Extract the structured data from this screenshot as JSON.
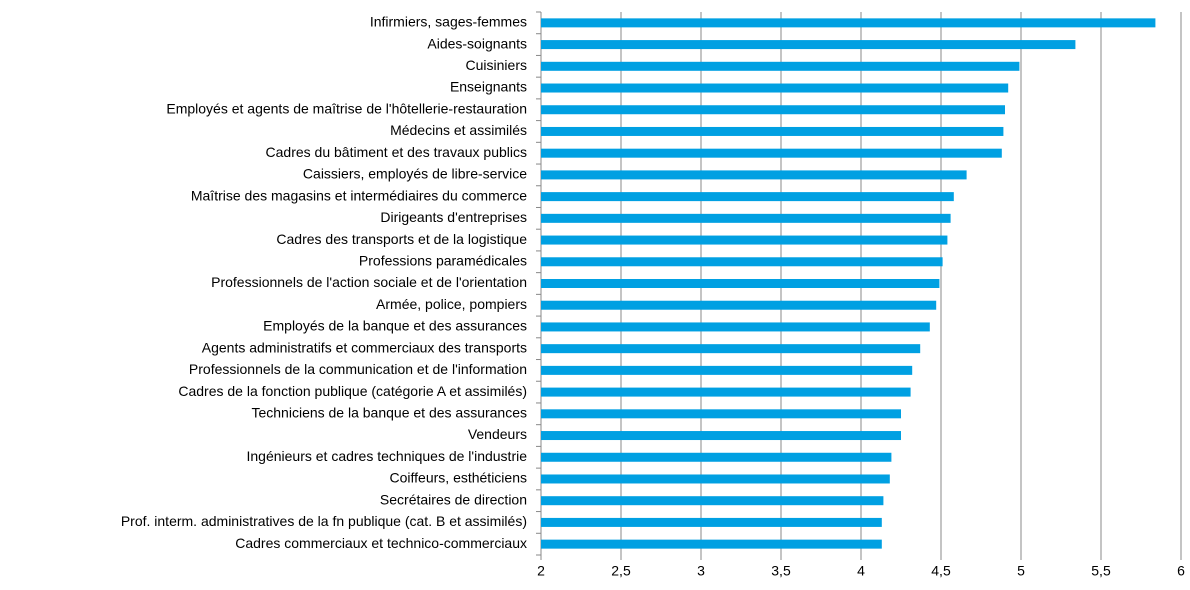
{
  "chart_data": {
    "type": "bar",
    "orientation": "horizontal",
    "categories": [
      "Infirmiers, sages-femmes",
      "Aides-soignants",
      "Cuisiniers",
      "Enseignants",
      "Employés et agents de maîtrise de l'hôtellerie-restauration",
      "Médecins et assimilés",
      "Cadres du bâtiment et des travaux publics",
      "Caissiers, employés de libre-service",
      "Maîtrise des magasins et intermédiaires du commerce",
      "Dirigeants d'entreprises",
      "Cadres des transports et de la logistique",
      "Professions paramédicales",
      "Professionnels de l'action sociale et de l'orientation",
      "Armée, police, pompiers",
      "Employés de la banque et des assurances",
      "Agents administratifs et commerciaux des transports",
      "Professionnels de la communication et de l'information",
      "Cadres de la fonction publique (catégorie A et assimilés)",
      "Techniciens de la banque et des assurances",
      "Vendeurs",
      "Ingénieurs et cadres techniques de l'industrie",
      "Coiffeurs, esthéticiens",
      "Secrétaires de direction",
      "Prof. interm. administratives de la fn publique (cat. B et assimilés)",
      "Cadres commerciaux et technico-commerciaux"
    ],
    "values": [
      5.84,
      5.34,
      4.99,
      4.92,
      4.9,
      4.89,
      4.88,
      4.66,
      4.58,
      4.56,
      4.54,
      4.51,
      4.49,
      4.47,
      4.43,
      4.37,
      4.32,
      4.31,
      4.25,
      4.25,
      4.19,
      4.18,
      4.14,
      4.13,
      4.13
    ],
    "color": "#00a0e2",
    "xlim": [
      2,
      6
    ],
    "xticks": [
      2,
      {
        "value": 2.5,
        "label": "2,5"
      },
      3,
      {
        "value": 3.5,
        "label": "3,5"
      },
      4,
      {
        "value": 4.5,
        "label": "4,5"
      },
      5,
      {
        "value": 5.5,
        "label": "5,5"
      },
      6
    ],
    "grid": true
  }
}
